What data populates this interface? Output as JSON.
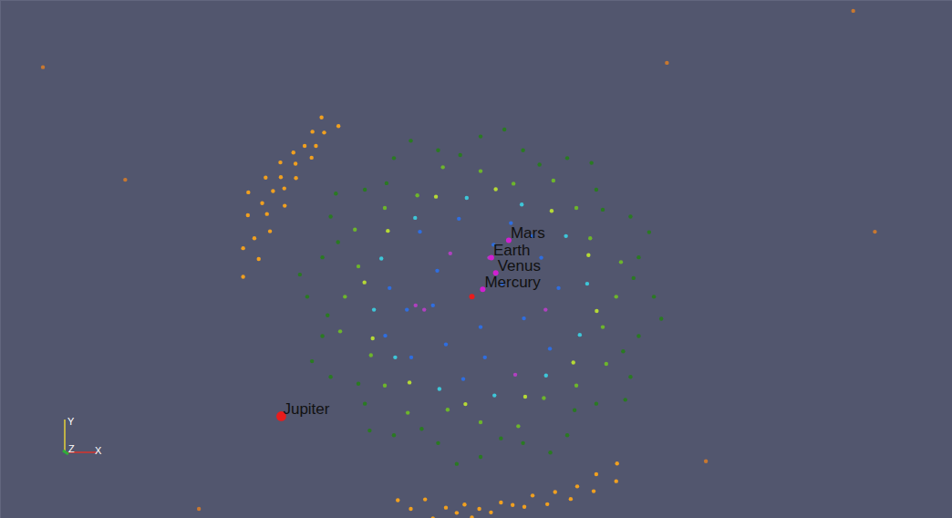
{
  "chart_data": {
    "type": "scatter",
    "xlim": [
      -10.88,
      11.09
    ],
    "ylim": [
      -5.12,
      6.84
    ],
    "tick_labels": false,
    "grid": false,
    "series": [
      {
        "color": "#2a7a22",
        "values": [
          [
            4.2,
            0.0
          ],
          [
            3.73,
            0.43
          ],
          [
            3.85,
            0.91
          ],
          [
            4.09,
            1.49
          ],
          [
            3.66,
            1.85
          ],
          [
            3.02,
            2.01
          ],
          [
            2.87,
            2.47
          ],
          [
            2.76,
            3.09
          ],
          [
            2.2,
            3.2
          ],
          [
            1.56,
            3.05
          ],
          [
            1.18,
            3.38
          ],
          [
            0.75,
            3.86
          ],
          [
            0.2,
            3.7
          ],
          [
            -0.27,
            3.27
          ],
          [
            -0.78,
            3.38
          ],
          [
            -1.41,
            3.6
          ],
          [
            -1.8,
            3.2
          ],
          [
            -1.97,
            2.62
          ],
          [
            -2.47,
            2.47
          ],
          [
            -3.14,
            2.38
          ],
          [
            -3.26,
            1.85
          ],
          [
            -3.09,
            1.26
          ],
          [
            -3.45,
            0.91
          ],
          [
            -3.97,
            0.51
          ],
          [
            -3.8,
            0.0
          ],
          [
            -3.33,
            -0.43
          ],
          [
            -3.45,
            -0.91
          ],
          [
            -3.69,
            -1.49
          ],
          [
            -3.26,
            -1.85
          ],
          [
            -2.62,
            -2.01
          ],
          [
            -2.47,
            -2.47
          ],
          [
            -2.36,
            -3.09
          ],
          [
            -1.8,
            -3.2
          ],
          [
            -1.16,
            -3.05
          ],
          [
            -0.78,
            -3.38
          ],
          [
            -0.35,
            -3.86
          ],
          [
            0.2,
            -3.7
          ],
          [
            0.67,
            -3.27
          ],
          [
            1.18,
            -3.38
          ],
          [
            1.81,
            -3.6
          ],
          [
            2.2,
            -3.2
          ],
          [
            2.37,
            -2.62
          ],
          [
            2.87,
            -2.47
          ],
          [
            3.54,
            -2.38
          ],
          [
            3.66,
            -1.85
          ],
          [
            3.49,
            -1.26
          ],
          [
            3.85,
            -0.91
          ],
          [
            4.37,
            -0.51
          ]
        ]
      },
      {
        "color": "#6db52c",
        "values": [
          [
            3.33,
            0.0
          ],
          [
            3.44,
            0.8
          ],
          [
            2.73,
            1.35
          ],
          [
            2.41,
            2.05
          ],
          [
            1.88,
            2.68
          ],
          [
            0.96,
            2.61
          ],
          [
            0.2,
            2.9
          ],
          [
            -0.67,
            2.99
          ],
          [
            -1.26,
            2.34
          ],
          [
            -2.01,
            2.05
          ],
          [
            -2.7,
            1.55
          ],
          [
            -2.62,
            0.7
          ],
          [
            -2.93,
            0.0
          ],
          [
            -3.04,
            -0.8
          ],
          [
            -2.33,
            -1.35
          ],
          [
            -2.01,
            -2.05
          ],
          [
            -1.48,
            -2.68
          ],
          [
            -0.56,
            -2.61
          ],
          [
            0.2,
            -2.9
          ],
          [
            1.07,
            -2.99
          ],
          [
            1.66,
            -2.34
          ],
          [
            2.41,
            -2.05
          ],
          [
            3.1,
            -1.55
          ],
          [
            3.02,
            -0.7
          ]
        ]
      },
      {
        "color": "#b5d936",
        "values": [
          [
            2.69,
            0.96
          ],
          [
            1.84,
            1.98
          ],
          [
            0.55,
            2.48
          ],
          [
            -0.83,
            2.31
          ],
          [
            -1.94,
            1.52
          ],
          [
            -2.48,
            0.33
          ],
          [
            -2.29,
            -0.96
          ],
          [
            -1.44,
            -1.98
          ],
          [
            -0.15,
            -2.48
          ],
          [
            1.23,
            -2.31
          ],
          [
            2.34,
            -1.52
          ],
          [
            2.88,
            -0.33
          ]
        ]
      },
      {
        "color": "#3ec6d8",
        "values": [
          [
            2.66,
            0.3
          ],
          [
            2.17,
            1.4
          ],
          [
            1.15,
            2.13
          ],
          [
            -0.12,
            2.28
          ],
          [
            -1.31,
            1.82
          ],
          [
            -2.09,
            0.88
          ],
          [
            -2.26,
            -0.3
          ],
          [
            -1.77,
            -1.4
          ],
          [
            -0.75,
            -2.13
          ],
          [
            0.52,
            -2.28
          ],
          [
            1.71,
            -1.82
          ],
          [
            2.49,
            -0.88
          ]
        ]
      },
      {
        "color": "#2f6ee0",
        "values": [
          [
            0.5,
            1.2
          ],
          [
            -0.8,
            0.6
          ],
          [
            -1.5,
            -0.3
          ],
          [
            1.2,
            -0.5
          ],
          [
            0.3,
            -1.4
          ],
          [
            -0.6,
            -1.1
          ],
          [
            1.6,
            0.9
          ],
          [
            -1.2,
            1.5
          ],
          [
            0.9,
            1.7
          ],
          [
            -1.9,
            0.2
          ],
          [
            1.8,
            -1.2
          ],
          [
            -0.2,
            -1.9
          ],
          [
            0.7,
            0.3
          ],
          [
            -1.4,
            -1.4
          ],
          [
            1.4,
            1.4
          ],
          [
            -0.3,
            1.8
          ],
          [
            2.0,
            0.2
          ],
          [
            -2.0,
            -0.9
          ],
          [
            0.2,
            -0.7
          ],
          [
            -0.9,
            -0.2
          ]
        ]
      },
      {
        "color": "#b040c0",
        "values": [
          [
            -1.1,
            -0.3
          ],
          [
            -1.3,
            -0.2
          ],
          [
            1.7,
            -0.3
          ],
          [
            0.4,
            0.9
          ],
          [
            -0.5,
            1.0
          ],
          [
            1.0,
            -1.8
          ]
        ]
      },
      {
        "color": "#f0a020",
        "values": [
          [
            -5.28,
            0.46
          ],
          [
            -4.92,
            0.87
          ],
          [
            -5.28,
            1.12
          ],
          [
            -5.02,
            1.35
          ],
          [
            -4.66,
            1.51
          ],
          [
            -5.17,
            1.88
          ],
          [
            -4.73,
            1.91
          ],
          [
            -4.84,
            2.16
          ],
          [
            -4.32,
            2.1
          ],
          [
            -4.59,
            2.44
          ],
          [
            -4.33,
            2.5
          ],
          [
            -4.76,
            2.75
          ],
          [
            -4.41,
            2.76
          ],
          [
            -4.06,
            2.74
          ],
          [
            -4.42,
            3.1
          ],
          [
            -4.07,
            3.07
          ],
          [
            -4.12,
            3.33
          ],
          [
            -3.7,
            3.21
          ],
          [
            -3.86,
            3.48
          ],
          [
            -3.6,
            3.48
          ],
          [
            -3.68,
            3.81
          ],
          [
            -3.41,
            3.79
          ],
          [
            -3.47,
            4.14
          ],
          [
            -3.08,
            3.94
          ],
          [
            -5.16,
            2.41
          ],
          [
            -1.71,
            -4.7
          ],
          [
            -1.41,
            -4.9
          ],
          [
            -1.08,
            -4.68
          ],
          [
            -0.9,
            -5.12
          ],
          [
            -0.6,
            -4.87
          ],
          [
            -0.35,
            -4.99
          ],
          [
            -0.17,
            -4.8
          ],
          [
            0.17,
            -4.9
          ],
          [
            0.44,
            -4.98
          ],
          [
            0.67,
            -4.75
          ],
          [
            0.94,
            -4.81
          ],
          [
            1.21,
            -4.85
          ],
          [
            1.4,
            -4.59
          ],
          [
            1.74,
            -4.79
          ],
          [
            1.92,
            -4.51
          ],
          [
            2.28,
            -4.67
          ],
          [
            2.43,
            -4.38
          ],
          [
            2.81,
            -4.49
          ],
          [
            2.87,
            -4.1
          ],
          [
            3.33,
            -4.26
          ],
          [
            3.35,
            -3.85
          ],
          [
            0.0,
            -5.1
          ]
        ]
      },
      {
        "color": "#c87830",
        "values": [
          [
            -9.9,
            5.3
          ],
          [
            -8.0,
            2.7
          ],
          [
            8.8,
            6.6
          ],
          [
            9.3,
            1.5
          ],
          [
            -6.3,
            -4.9
          ],
          [
            4.5,
            5.4
          ],
          [
            5.4,
            -3.8
          ]
        ]
      }
    ],
    "sun": {
      "x": 0.0,
      "y": 0.0,
      "color": "#e81c1c"
    },
    "planets": [
      {
        "name": "Mercury",
        "x": 0.25,
        "y": 0.17,
        "color": "#d020d0"
      },
      {
        "name": "Venus",
        "x": 0.55,
        "y": 0.55,
        "color": "#d020d0"
      },
      {
        "name": "Earth",
        "x": 0.45,
        "y": 0.9,
        "color": "#d020d0"
      },
      {
        "name": "Mars",
        "x": 0.85,
        "y": 1.3,
        "color": "#d020d0"
      },
      {
        "name": "Jupiter",
        "x": -4.4,
        "y": -2.76,
        "color": "#e81c1c"
      }
    ],
    "axes_triad": {
      "x": "X",
      "y": "Y",
      "z": "Z"
    }
  }
}
